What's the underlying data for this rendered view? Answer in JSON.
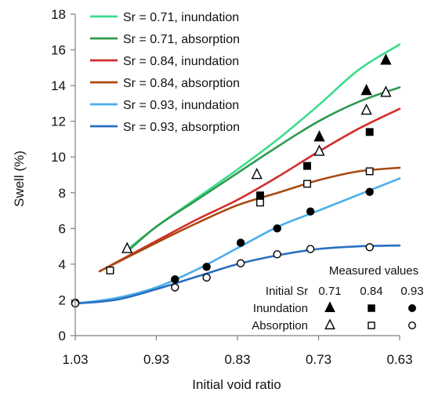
{
  "chart_data": {
    "type": "scatter",
    "xlabel": "Initial void ratio",
    "ylabel": "Swell  (%)",
    "xlim": [
      1.03,
      0.63
    ],
    "x_reversed": true,
    "ylim": [
      0,
      18
    ],
    "xticks": [
      "1.03",
      "0.93",
      "0.83",
      "0.73",
      "0.63"
    ],
    "yticks": [
      "0",
      "2",
      "4",
      "6",
      "8",
      "10",
      "12",
      "14",
      "16",
      "18"
    ],
    "grid": false,
    "legend_position": "top-left",
    "series": [
      {
        "name": "Sr = 0.71, inundation",
        "color": "#3cdc8c",
        "curve": [
          [
            0.966,
            4.8
          ],
          [
            0.93,
            6.1
          ],
          [
            0.88,
            7.7
          ],
          [
            0.83,
            9.3
          ],
          [
            0.78,
            11.0
          ],
          [
            0.73,
            12.9
          ],
          [
            0.68,
            14.9
          ],
          [
            0.63,
            16.3
          ]
        ],
        "marker": "filled-triangle",
        "points": [
          [
            0.729,
            11.1
          ],
          [
            0.671,
            13.7
          ],
          [
            0.647,
            15.4
          ]
        ]
      },
      {
        "name": "Sr = 0.71, absorption",
        "color": "#2e9a4e",
        "curve": [
          [
            0.966,
            4.7
          ],
          [
            0.93,
            6.1
          ],
          [
            0.88,
            7.6
          ],
          [
            0.83,
            9.1
          ],
          [
            0.78,
            10.6
          ],
          [
            0.73,
            12.0
          ],
          [
            0.68,
            13.1
          ],
          [
            0.63,
            13.9
          ]
        ],
        "marker": "open-triangle",
        "points": [
          [
            0.966,
            4.85
          ],
          [
            0.806,
            9.0
          ],
          [
            0.729,
            10.3
          ],
          [
            0.671,
            12.6
          ],
          [
            0.647,
            13.6
          ]
        ]
      },
      {
        "name": "Sr = 0.84, inundation",
        "color": "#d22d2d",
        "curve": [
          [
            1.0,
            3.6
          ],
          [
            0.93,
            5.3
          ],
          [
            0.88,
            6.5
          ],
          [
            0.83,
            7.6
          ],
          [
            0.78,
            8.9
          ],
          [
            0.73,
            10.3
          ],
          [
            0.68,
            11.6
          ],
          [
            0.63,
            12.7
          ]
        ],
        "marker": "filled-square",
        "points": [
          [
            0.802,
            7.85
          ],
          [
            0.744,
            9.5
          ],
          [
            0.667,
            11.4
          ]
        ]
      },
      {
        "name": "Sr = 0.84, absorption",
        "color": "#a84a12",
        "curve": [
          [
            1.0,
            3.6
          ],
          [
            0.93,
            5.2
          ],
          [
            0.88,
            6.3
          ],
          [
            0.83,
            7.3
          ],
          [
            0.78,
            8.0
          ],
          [
            0.73,
            8.7
          ],
          [
            0.68,
            9.2
          ],
          [
            0.63,
            9.4
          ]
        ],
        "marker": "open-square",
        "points": [
          [
            0.987,
            3.65
          ],
          [
            0.802,
            7.45
          ],
          [
            0.744,
            8.5
          ],
          [
            0.667,
            9.2
          ]
        ]
      },
      {
        "name": "Sr = 0.93, inundation",
        "color": "#4aaeea",
        "curve": [
          [
            1.03,
            1.8
          ],
          [
            0.98,
            2.1
          ],
          [
            0.93,
            2.7
          ],
          [
            0.88,
            3.7
          ],
          [
            0.83,
            4.9
          ],
          [
            0.78,
            6.1
          ],
          [
            0.73,
            7.0
          ],
          [
            0.68,
            7.9
          ],
          [
            0.63,
            8.8
          ]
        ],
        "marker": "filled-circle",
        "points": [
          [
            1.03,
            1.85
          ],
          [
            0.907,
            3.15
          ],
          [
            0.868,
            3.85
          ],
          [
            0.826,
            5.2
          ],
          [
            0.781,
            6.0
          ],
          [
            0.74,
            6.95
          ],
          [
            0.667,
            8.05
          ]
        ]
      },
      {
        "name": "Sr = 0.93, absorption",
        "color": "#2a6fbf",
        "curve": [
          [
            1.03,
            1.8
          ],
          [
            0.98,
            2.0
          ],
          [
            0.93,
            2.6
          ],
          [
            0.88,
            3.3
          ],
          [
            0.83,
            4.0
          ],
          [
            0.78,
            4.5
          ],
          [
            0.73,
            4.85
          ],
          [
            0.68,
            5.0
          ],
          [
            0.63,
            5.05
          ]
        ],
        "marker": "open-circle",
        "points": [
          [
            1.03,
            1.8
          ],
          [
            0.907,
            2.7
          ],
          [
            0.868,
            3.25
          ],
          [
            0.826,
            4.05
          ],
          [
            0.781,
            4.55
          ],
          [
            0.74,
            4.85
          ],
          [
            0.667,
            4.95
          ]
        ]
      }
    ],
    "marker_table": {
      "title_left": "Initial Sr",
      "title_right": "Measured values",
      "columns": [
        "0.71",
        "0.84",
        "0.93"
      ],
      "rows": [
        "Inundation",
        "Absorption"
      ]
    }
  }
}
